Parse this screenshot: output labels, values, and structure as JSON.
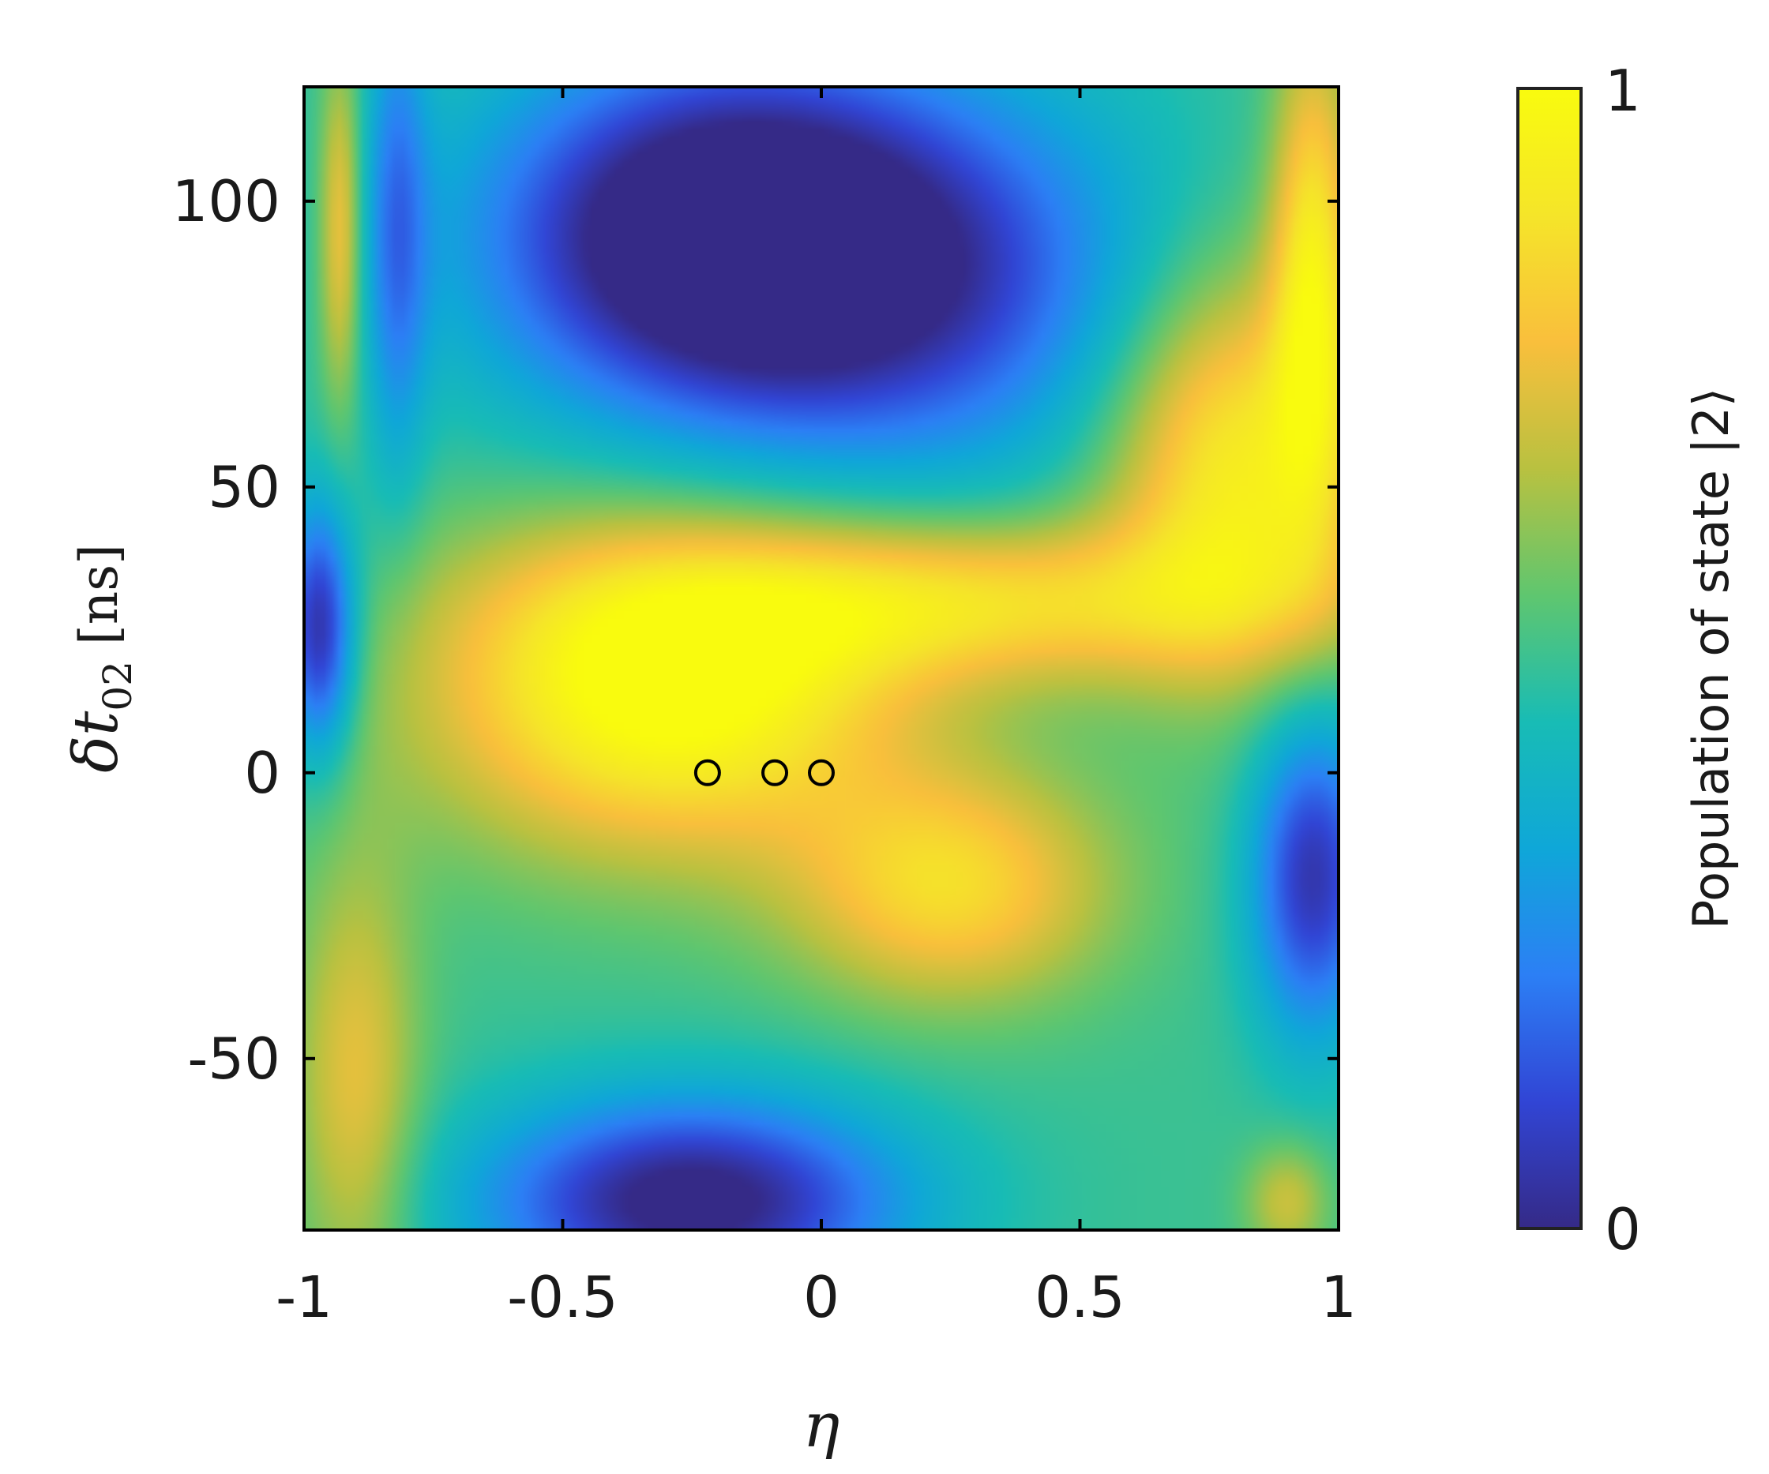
{
  "chart_data": {
    "type": "heatmap",
    "title": "",
    "xlabel": "η",
    "ylabel_symbol": "δt",
    "ylabel_subscript": "02",
    "ylabel_unit": "[ns]",
    "xlim": [
      -1,
      1
    ],
    "ylim": [
      -80,
      120
    ],
    "x_ticks": [
      -1,
      -0.5,
      0,
      0.5,
      1
    ],
    "x_tick_labels": [
      "-1",
      "-0.5",
      "0",
      "0.5",
      "1"
    ],
    "y_ticks": [
      -50,
      0,
      50,
      100
    ],
    "y_tick_labels": [
      "-50",
      "0",
      "50",
      "100"
    ],
    "colorbar": {
      "label": "Population of state |2⟩",
      "range": [
        0,
        1
      ],
      "tick_labels": [
        "0",
        "1"
      ],
      "colormap": "parula",
      "colors": [
        "#352a87",
        "#3145d5",
        "#2c7ff5",
        "#0fa7d8",
        "#18bcb5",
        "#5fc66f",
        "#b9c140",
        "#f9bf3c",
        "#f5e529",
        "#f9fb0e"
      ]
    },
    "markers": [
      {
        "x": -0.22,
        "y": 0
      },
      {
        "x": -0.09,
        "y": 0
      },
      {
        "x": 0.0,
        "y": 0
      }
    ],
    "grid": false
  }
}
